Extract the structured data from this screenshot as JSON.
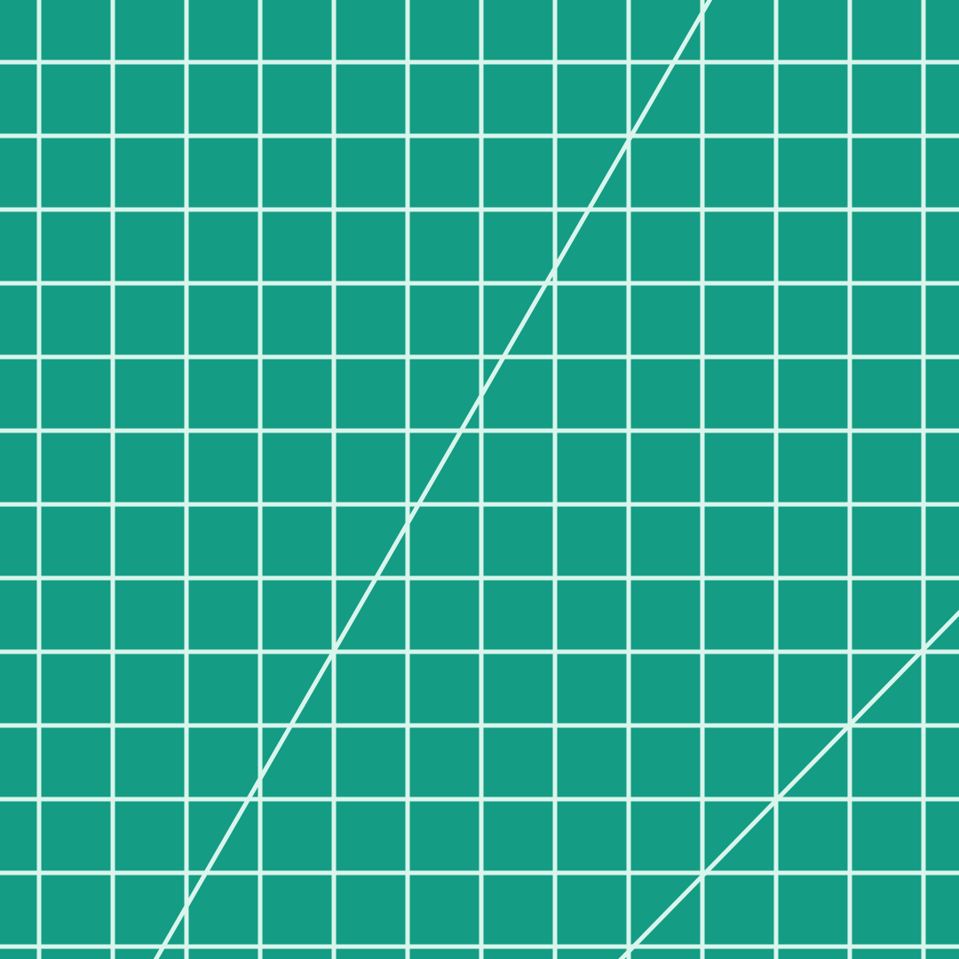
{
  "mat": {
    "subject": "cutting-mat-grid",
    "colors": {
      "surface": "#149c84",
      "grid_line": "#d9f5ec",
      "angle_line": "#d9f5ec"
    },
    "grid": {
      "vertical_lines": 13,
      "horizontal_lines": 13
    },
    "angle_lines": [
      {
        "name": "steep-angle-line"
      },
      {
        "name": "shallow-angle-line"
      }
    ]
  }
}
